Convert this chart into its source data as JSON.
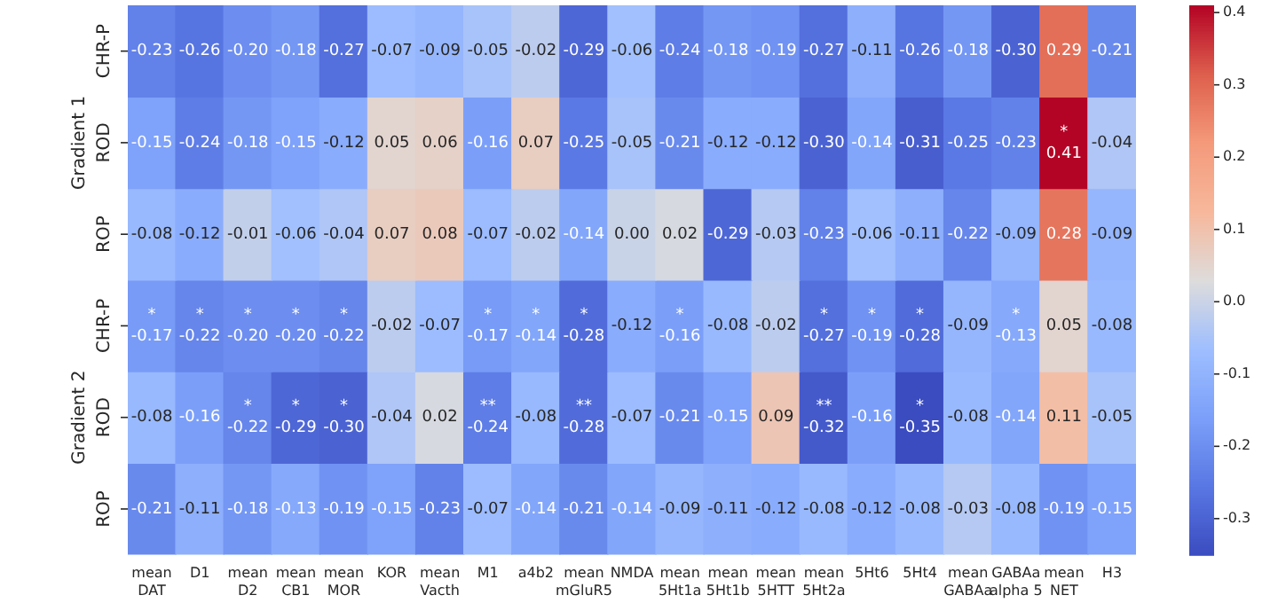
{
  "chart_data": {
    "type": "heatmap",
    "categories": [
      "mean DAT",
      "D1",
      "mean D2",
      "mean CB1",
      "mean MOR",
      "KOR",
      "mean Vacth",
      "M1",
      "a4b2",
      "mean mGluR5",
      "NMDA",
      "mean 5Ht1a",
      "mean 5Ht1b",
      "mean 5HTT",
      "mean 5Ht2a",
      "5Ht6",
      "5Ht4",
      "mean GABAa",
      "GABAa alpha 5",
      "mean NET",
      "H3"
    ],
    "y_categories": [
      "CHR-P",
      "ROD",
      "ROP",
      "CHR-P",
      "ROD",
      "ROP"
    ],
    "annotations": [
      "Gradient 1",
      "Gradient 2"
    ],
    "cells": [
      [
        -0.23,
        -0.26,
        -0.2,
        -0.18,
        -0.27,
        -0.07,
        -0.09,
        -0.05,
        -0.02,
        -0.29,
        -0.06,
        -0.24,
        -0.18,
        -0.19,
        -0.27,
        -0.11,
        -0.26,
        -0.18,
        -0.3,
        0.29,
        -0.21
      ],
      [
        -0.15,
        -0.24,
        -0.18,
        -0.15,
        -0.12,
        0.05,
        0.06,
        -0.16,
        0.07,
        -0.25,
        -0.05,
        -0.21,
        -0.12,
        -0.12,
        -0.3,
        -0.14,
        -0.31,
        -0.25,
        -0.23,
        0.41,
        -0.04
      ],
      [
        -0.08,
        -0.12,
        -0.01,
        -0.06,
        -0.04,
        0.07,
        0.08,
        -0.07,
        -0.02,
        -0.14,
        0.0,
        0.02,
        -0.29,
        -0.03,
        -0.23,
        -0.06,
        -0.11,
        -0.22,
        -0.09,
        0.28,
        -0.09
      ],
      [
        -0.17,
        -0.22,
        -0.2,
        -0.2,
        -0.22,
        -0.02,
        -0.07,
        -0.17,
        -0.14,
        -0.28,
        -0.12,
        -0.16,
        -0.08,
        -0.02,
        -0.27,
        -0.19,
        -0.28,
        -0.09,
        -0.13,
        0.05,
        -0.08
      ],
      [
        -0.08,
        -0.16,
        -0.22,
        -0.29,
        -0.3,
        -0.04,
        0.02,
        -0.24,
        -0.08,
        -0.28,
        -0.07,
        -0.21,
        -0.15,
        0.09,
        -0.32,
        -0.16,
        -0.35,
        -0.08,
        -0.14,
        0.11,
        -0.05
      ],
      [
        -0.21,
        -0.11,
        -0.18,
        -0.13,
        -0.19,
        -0.15,
        -0.23,
        -0.07,
        -0.14,
        -0.21,
        -0.14,
        -0.09,
        -0.11,
        -0.12,
        -0.08,
        -0.12,
        -0.08,
        -0.03,
        -0.08,
        -0.19,
        -0.15
      ]
    ],
    "cell_labels": [
      [
        "-0.23",
        "-0.26",
        "-0.20",
        "-0.18",
        "-0.27",
        "-0.07",
        "-0.09",
        "-0.05",
        "-0.02",
        "-0.29",
        "-0.06",
        "-0.24",
        "-0.18",
        "-0.19",
        "-0.27",
        "-0.11",
        "-0.26",
        "-0.18",
        "-0.30",
        "0.29",
        "-0.21"
      ],
      [
        "-0.15",
        "-0.24",
        "-0.18",
        "-0.15",
        "-0.12",
        "0.05",
        "0.06",
        "-0.16",
        "0.07",
        "-0.25",
        "-0.05",
        "-0.21",
        "-0.12",
        "-0.12",
        "-0.30",
        "-0.14",
        "-0.31",
        "-0.25",
        "-0.23",
        "*\n0.41",
        "-0.04"
      ],
      [
        "-0.08",
        "-0.12",
        "-0.01",
        "-0.06",
        "-0.04",
        "0.07",
        "0.08",
        "-0.07",
        "-0.02",
        "-0.14",
        "0.00",
        "0.02",
        "-0.29",
        "-0.03",
        "-0.23",
        "-0.06",
        "-0.11",
        "-0.22",
        "-0.09",
        "0.28",
        "-0.09"
      ],
      [
        "*\n-0.17",
        "*\n-0.22",
        "*\n-0.20",
        "*\n-0.20",
        "*\n-0.22",
        "-0.02",
        "-0.07",
        "*\n-0.17",
        "*\n-0.14",
        "*\n-0.28",
        "-0.12",
        "*\n-0.16",
        "-0.08",
        "-0.02",
        "*\n-0.27",
        "*\n-0.19",
        "*\n-0.28",
        "-0.09",
        "*\n-0.13",
        "0.05",
        "-0.08"
      ],
      [
        "-0.08",
        "-0.16",
        "*\n-0.22",
        "*\n-0.29",
        "*\n-0.30",
        "-0.04",
        "0.02",
        "**\n-0.24",
        "-0.08",
        "**\n-0.28",
        "-0.07",
        "-0.21",
        "-0.15",
        "0.09",
        "**\n-0.32",
        "-0.16",
        "*\n-0.35",
        "-0.08",
        "-0.14",
        "0.11",
        "-0.05"
      ],
      [
        "-0.21",
        "-0.11",
        "-0.18",
        "-0.13",
        "-0.19",
        "-0.15",
        "-0.23",
        "-0.07",
        "-0.14",
        "-0.21",
        "-0.14",
        "-0.09",
        "-0.11",
        "-0.12",
        "-0.08",
        "-0.12",
        "-0.08",
        "-0.03",
        "-0.08",
        "-0.19",
        "-0.15"
      ]
    ],
    "clim": [
      -0.35,
      0.41
    ],
    "cticks": [
      -0.3,
      -0.2,
      -0.1,
      {
        "value": 0,
        "label": "0.0"
      },
      0.1,
      0.2,
      0.3,
      0.4
    ]
  }
}
